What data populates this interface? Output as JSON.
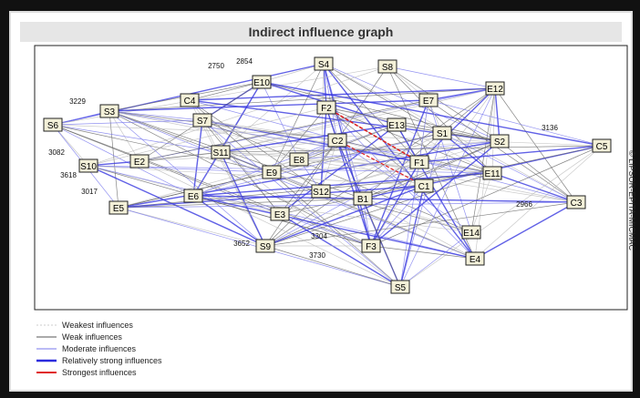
{
  "title": "Indirect influence graph",
  "nodes": [
    {
      "label": "S4"
    },
    {
      "label": "S8"
    },
    {
      "label": "E12"
    },
    {
      "label": "E10"
    },
    {
      "label": "C4"
    },
    {
      "label": "S3"
    },
    {
      "label": "S6"
    },
    {
      "label": "S7"
    },
    {
      "label": "E7"
    },
    {
      "label": "F2"
    },
    {
      "label": "E13"
    },
    {
      "label": "S1"
    },
    {
      "label": "C2"
    },
    {
      "label": "S2"
    },
    {
      "label": "C5"
    },
    {
      "label": "S11"
    },
    {
      "label": "E2"
    },
    {
      "label": "E8"
    },
    {
      "label": "E9"
    },
    {
      "label": "S10"
    },
    {
      "label": "F1"
    },
    {
      "label": "E11"
    },
    {
      "label": "C1"
    },
    {
      "label": "S12"
    },
    {
      "label": "E6"
    },
    {
      "label": "E5"
    },
    {
      "label": "B1"
    },
    {
      "label": "C3"
    },
    {
      "label": "E3"
    },
    {
      "label": "E14"
    },
    {
      "label": "S9"
    },
    {
      "label": "F3"
    },
    {
      "label": "E4"
    },
    {
      "label": "S5"
    }
  ],
  "edge_labels": [
    2750,
    2854,
    3229,
    3082,
    3618,
    3017,
    3136,
    3652,
    3730,
    2966,
    3304
  ],
  "legend": [
    {
      "label": "Weakest influences"
    },
    {
      "label": "Weak influences"
    },
    {
      "label": "Moderate influences"
    },
    {
      "label": "Relatively strong influences"
    },
    {
      "label": "Strongest influences"
    }
  ],
  "copyright": "© LIPSOR-EPITA-MICMAC"
}
